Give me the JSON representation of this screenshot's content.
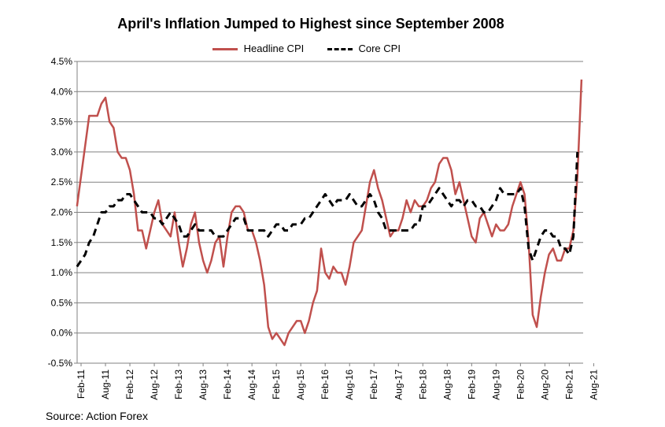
{
  "chart_data": {
    "type": "line",
    "title": "April's Inflation Jumped to Highest since September 2008",
    "xlabel": "",
    "ylabel": "",
    "ylim": [
      -0.5,
      4.5
    ],
    "yticks": [
      "-0.5%",
      "0.0%",
      "0.5%",
      "1.0%",
      "1.5%",
      "2.0%",
      "2.5%",
      "3.0%",
      "3.5%",
      "4.0%",
      "4.5%"
    ],
    "xticks": [
      "Feb-11",
      "Aug-11",
      "Feb-12",
      "Aug-12",
      "Feb-13",
      "Aug-13",
      "Feb-14",
      "Aug-14",
      "Feb-15",
      "Aug-15",
      "Feb-16",
      "Aug-16",
      "Feb-17",
      "Aug-17",
      "Feb-18",
      "Aug-18",
      "Feb-19",
      "Aug-19",
      "Feb-20",
      "Aug-20",
      "Feb-21",
      "Aug-21"
    ],
    "grid": true,
    "legend_position": "top",
    "start_month": "Jan-11",
    "series": [
      {
        "name": "Headline CPI",
        "color": "#c0504d",
        "dash": "solid",
        "values": [
          2.1,
          2.6,
          3.1,
          3.6,
          3.6,
          3.6,
          3.8,
          3.9,
          3.5,
          3.4,
          3.0,
          2.9,
          2.9,
          2.7,
          2.3,
          1.7,
          1.7,
          1.4,
          1.7,
          2.0,
          2.2,
          1.8,
          1.7,
          1.6,
          2.0,
          1.5,
          1.1,
          1.4,
          1.8,
          2.0,
          1.5,
          1.2,
          1.0,
          1.2,
          1.5,
          1.6,
          1.1,
          1.6,
          2.0,
          2.1,
          2.1,
          2.0,
          1.7,
          1.7,
          1.5,
          1.2,
          0.8,
          0.1,
          -0.1,
          0.0,
          -0.1,
          -0.2,
          0.0,
          0.1,
          0.2,
          0.2,
          0.0,
          0.2,
          0.5,
          0.7,
          1.4,
          1.0,
          0.9,
          1.1,
          1.0,
          1.0,
          0.8,
          1.1,
          1.5,
          1.6,
          1.7,
          2.1,
          2.5,
          2.7,
          2.4,
          2.2,
          1.9,
          1.6,
          1.7,
          1.7,
          1.9,
          2.2,
          2.0,
          2.2,
          2.1,
          2.1,
          2.2,
          2.4,
          2.5,
          2.8,
          2.9,
          2.9,
          2.7,
          2.3,
          2.5,
          2.2,
          1.9,
          1.6,
          1.5,
          1.9,
          2.0,
          1.8,
          1.6,
          1.8,
          1.7,
          1.7,
          1.8,
          2.1,
          2.3,
          2.5,
          2.3,
          1.5,
          0.3,
          0.1,
          0.6,
          1.0,
          1.3,
          1.4,
          1.2,
          1.2,
          1.4,
          1.4,
          1.7,
          2.6,
          4.2
        ]
      },
      {
        "name": "Core CPI",
        "color": "#000000",
        "dash": "dashed",
        "values": [
          1.1,
          1.2,
          1.3,
          1.5,
          1.6,
          1.8,
          2.0,
          2.0,
          2.1,
          2.1,
          2.2,
          2.2,
          2.3,
          2.3,
          2.2,
          2.1,
          2.0,
          2.0,
          2.0,
          1.9,
          1.9,
          1.8,
          1.9,
          2.0,
          1.9,
          1.8,
          1.6,
          1.6,
          1.7,
          1.8,
          1.7,
          1.7,
          1.7,
          1.7,
          1.6,
          1.6,
          1.6,
          1.7,
          1.8,
          1.9,
          1.9,
          1.9,
          1.7,
          1.7,
          1.7,
          1.7,
          1.7,
          1.6,
          1.7,
          1.8,
          1.8,
          1.7,
          1.7,
          1.8,
          1.8,
          1.8,
          1.9,
          1.9,
          2.0,
          2.1,
          2.2,
          2.3,
          2.2,
          2.1,
          2.2,
          2.2,
          2.2,
          2.3,
          2.2,
          2.1,
          2.1,
          2.2,
          2.3,
          2.2,
          2.0,
          1.9,
          1.7,
          1.7,
          1.7,
          1.7,
          1.7,
          1.7,
          1.7,
          1.8,
          1.8,
          2.1,
          2.1,
          2.2,
          2.3,
          2.4,
          2.3,
          2.2,
          2.1,
          2.2,
          2.2,
          2.1,
          2.2,
          2.2,
          2.1,
          2.1,
          2.0,
          2.0,
          2.1,
          2.2,
          2.4,
          2.3,
          2.3,
          2.3,
          2.3,
          2.4,
          2.1,
          1.4,
          1.2,
          1.4,
          1.6,
          1.7,
          1.7,
          1.6,
          1.6,
          1.4,
          1.4,
          1.3,
          1.6,
          3.0
        ]
      }
    ]
  },
  "source": "Source: Action Forex"
}
